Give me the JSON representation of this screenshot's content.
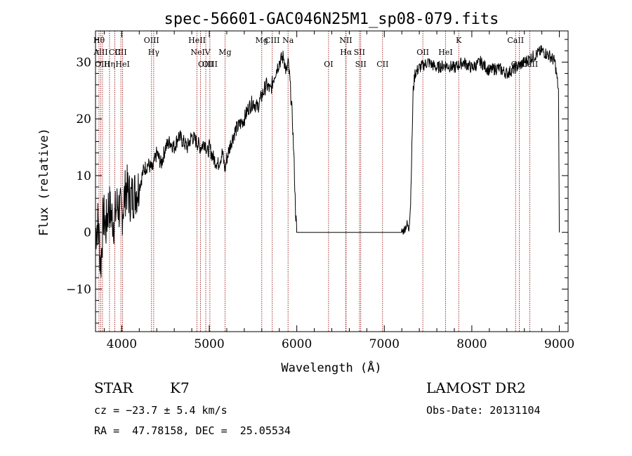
{
  "chart_data": {
    "type": "line",
    "title": "spec-56601-GAC046N25M1_sp08-079.fits",
    "xlabel": "Wavelength (Å)",
    "ylabel": "Flux (relative)",
    "xlim": [
      3700,
      9100
    ],
    "ylim": [
      -17.5,
      35.5
    ],
    "xticks": [
      4000,
      5000,
      6000,
      7000,
      8000,
      9000
    ],
    "yticks": [
      -10,
      0,
      10,
      20,
      30
    ],
    "grid": false,
    "line_color": "#000000",
    "marker_color": "#8b0000",
    "spectrum_nodes": [
      [
        3700,
        0
      ],
      [
        3730,
        2
      ],
      [
        3760,
        -6
      ],
      [
        3790,
        3
      ],
      [
        3820,
        1
      ],
      [
        3850,
        5
      ],
      [
        3880,
        3
      ],
      [
        3910,
        2
      ],
      [
        3950,
        5
      ],
      [
        4000,
        3
      ],
      [
        4050,
        8
      ],
      [
        4100,
        6
      ],
      [
        4150,
        7
      ],
      [
        4200,
        8
      ],
      [
        4250,
        11
      ],
      [
        4300,
        12
      ],
      [
        4350,
        11
      ],
      [
        4400,
        14
      ],
      [
        4450,
        12
      ],
      [
        4500,
        15
      ],
      [
        4550,
        16
      ],
      [
        4600,
        15
      ],
      [
        4650,
        17
      ],
      [
        4700,
        16
      ],
      [
        4750,
        15
      ],
      [
        4800,
        17
      ],
      [
        4850,
        16
      ],
      [
        4900,
        15
      ],
      [
        4950,
        16
      ],
      [
        4980,
        14
      ],
      [
        5000,
        15
      ],
      [
        5050,
        13
      ],
      [
        5100,
        12
      ],
      [
        5150,
        14
      ],
      [
        5180,
        11
      ],
      [
        5200,
        13
      ],
      [
        5250,
        16
      ],
      [
        5300,
        18
      ],
      [
        5350,
        19
      ],
      [
        5400,
        20
      ],
      [
        5450,
        22
      ],
      [
        5500,
        23
      ],
      [
        5550,
        22
      ],
      [
        5600,
        24
      ],
      [
        5650,
        26
      ],
      [
        5700,
        25
      ],
      [
        5750,
        28
      ],
      [
        5800,
        30
      ],
      [
        5850,
        31
      ],
      [
        5880,
        28
      ],
      [
        5900,
        30
      ],
      [
        5920,
        27
      ],
      [
        5950,
        20
      ],
      [
        5970,
        12
      ],
      [
        5985,
        4
      ],
      [
        6000,
        0
      ],
      [
        7200,
        0
      ],
      [
        7230,
        0.5
      ],
      [
        7260,
        1.5
      ],
      [
        7280,
        0.5
      ],
      [
        7300,
        5
      ],
      [
        7330,
        25
      ],
      [
        7350,
        28
      ],
      [
        7400,
        29
      ],
      [
        7500,
        30
      ],
      [
        7600,
        29
      ],
      [
        7700,
        29.5
      ],
      [
        7800,
        29
      ],
      [
        7900,
        30
      ],
      [
        8000,
        29
      ],
      [
        8100,
        30
      ],
      [
        8200,
        28.5
      ],
      [
        8300,
        29
      ],
      [
        8400,
        28
      ],
      [
        8500,
        29
      ],
      [
        8600,
        30
      ],
      [
        8700,
        31
      ],
      [
        8800,
        32
      ],
      [
        8900,
        31
      ],
      [
        8950,
        30
      ],
      [
        8990,
        25
      ],
      [
        9000,
        0
      ]
    ],
    "line_markers": [
      {
        "x": 3740,
        "label": "Hθ",
        "row": 1
      },
      {
        "x": 3760,
        "label": "AlII",
        "row": 2
      },
      {
        "x": 3780,
        "label": "OIII",
        "row": 3
      },
      {
        "x": 3860,
        "label": "Hη",
        "row": 3
      },
      {
        "x": 3920,
        "label": "CII",
        "row": 2
      },
      {
        "x": 3990,
        "label": "CII",
        "row": 2
      },
      {
        "x": 4010,
        "label": "HeI",
        "row": 3
      },
      {
        "x": 4340,
        "label": "OIII",
        "row": 1
      },
      {
        "x": 4365,
        "label": "Hγ",
        "row": 2
      },
      {
        "x": 4860,
        "label": "HeII",
        "row": 1
      },
      {
        "x": 4900,
        "label": "NeIV",
        "row": 2
      },
      {
        "x": 4960,
        "label": "OIII",
        "row": 3
      },
      {
        "x": 5007,
        "label": "OIII",
        "row": 3
      },
      {
        "x": 5180,
        "label": "Mg",
        "row": 2
      },
      {
        "x": 5600,
        "label": "Mg",
        "row": 1
      },
      {
        "x": 5720,
        "label": "CIII",
        "row": 1
      },
      {
        "x": 5900,
        "label": "Na",
        "row": 1
      },
      {
        "x": 6363,
        "label": "OI",
        "row": 3
      },
      {
        "x": 6560,
        "label": "NII",
        "row": 1
      },
      {
        "x": 6563,
        "label": "Hα",
        "row": 2
      },
      {
        "x": 6716,
        "label": "SII",
        "row": 2
      },
      {
        "x": 6731,
        "label": "SII",
        "row": 3
      },
      {
        "x": 6980,
        "label": "CII",
        "row": 3
      },
      {
        "x": 7440,
        "label": "OII",
        "row": 2
      },
      {
        "x": 7700,
        "label": "HeI",
        "row": 2
      },
      {
        "x": 7850,
        "label": "K",
        "row": 1
      },
      {
        "x": 8500,
        "label": "CaII",
        "row": 1
      },
      {
        "x": 8542,
        "label": "CaII",
        "row": 3
      },
      {
        "x": 8662,
        "label": "CaII",
        "row": 3
      }
    ]
  },
  "info": {
    "object_class": "STAR",
    "subclass": "K7",
    "survey": "LAMOST DR2",
    "cz": "cz = −23.7 ± 5.4 km/s",
    "obs_date": "Obs-Date: 20131104",
    "coords": "RA =  47.78158, DEC =  25.05534"
  }
}
